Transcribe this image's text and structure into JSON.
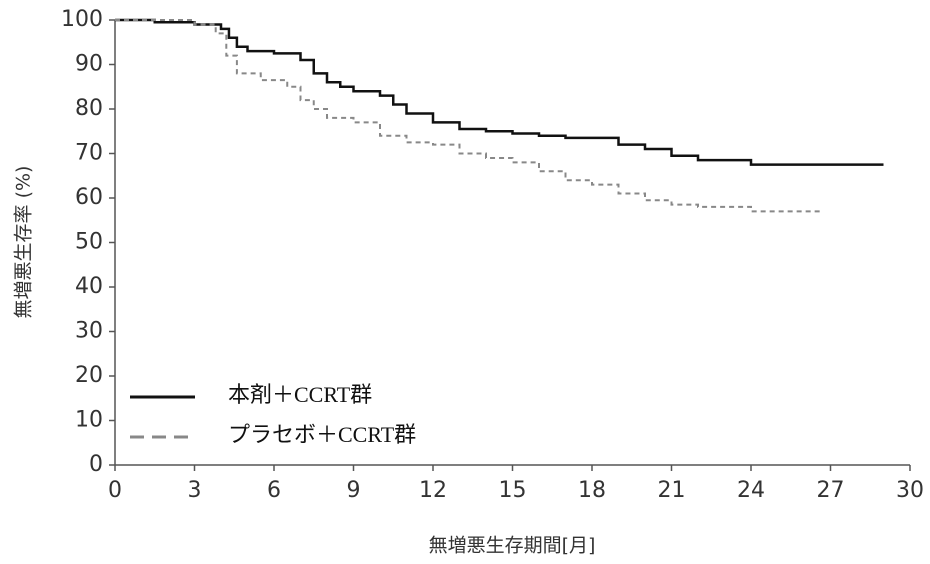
{
  "chart_data": {
    "type": "line",
    "step": true,
    "xlabel": "無増悪生存期間[月]",
    "ylabel": "無増悪生存率 (%)",
    "xlim": [
      0,
      30
    ],
    "xticks": [
      0,
      3,
      6,
      9,
      12,
      15,
      18,
      21,
      24,
      27,
      30
    ],
    "ylim": [
      0,
      100
    ],
    "yticks": [
      0,
      10,
      20,
      30,
      40,
      50,
      60,
      70,
      80,
      90,
      100
    ],
    "series": [
      {
        "name": "本剤＋CCRT群",
        "color": "#111111",
        "dash": false,
        "x": [
          0,
          1.5,
          3,
          4,
          4.3,
          4.6,
          5,
          6,
          7,
          7.5,
          8,
          8.5,
          9,
          10,
          10.5,
          11,
          12,
          13,
          14,
          15,
          16,
          17,
          18,
          19,
          20,
          21,
          22,
          24,
          29
        ],
        "values": [
          100,
          99.5,
          99,
          98,
          96,
          94,
          93,
          92.5,
          91,
          88,
          86,
          85,
          84,
          83,
          81,
          79,
          77,
          75.5,
          75,
          74.5,
          74,
          73.5,
          73.5,
          72,
          71,
          69.5,
          68.5,
          67.5,
          67.5
        ]
      },
      {
        "name": "プラセボ＋CCRT群",
        "color": "#888888",
        "dash": true,
        "x": [
          0,
          3,
          3.8,
          4.2,
          4.6,
          5.5,
          6.5,
          7,
          7.5,
          8,
          9,
          10,
          11,
          12,
          13,
          14,
          15,
          16,
          17,
          18,
          19,
          20,
          21,
          22,
          24,
          26.7
        ],
        "values": [
          100,
          99,
          97,
          92,
          88,
          86.5,
          85,
          82,
          80,
          78,
          77,
          74,
          72.5,
          72,
          70,
          69,
          68,
          66,
          64,
          63,
          61,
          59.5,
          58.5,
          58,
          57,
          57
        ]
      }
    ]
  }
}
